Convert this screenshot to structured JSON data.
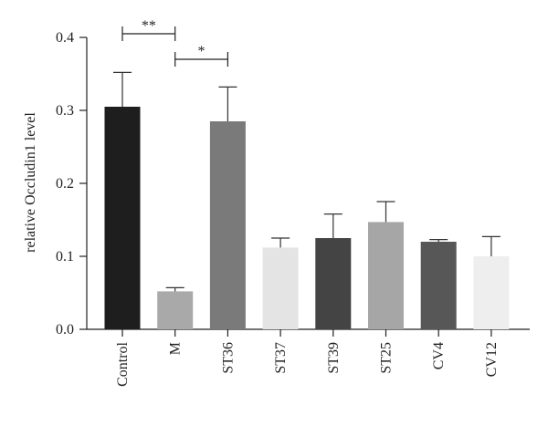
{
  "chart_data": {
    "type": "bar",
    "title": "",
    "xlabel": "",
    "ylabel": "relative Occludin1 level",
    "ylim": [
      0,
      0.4
    ],
    "yticks": [
      "0.0",
      "0.1",
      "0.2",
      "0.3",
      "0.4"
    ],
    "grid": false,
    "categories": [
      "Control",
      "M",
      "ST36",
      "ST37",
      "ST39",
      "ST25",
      "CV4",
      "CV12"
    ],
    "values": [
      0.305,
      0.052,
      0.285,
      0.112,
      0.125,
      0.147,
      0.12,
      0.1
    ],
    "errors": [
      0.047,
      0.005,
      0.047,
      0.013,
      0.033,
      0.028,
      0.003,
      0.027
    ],
    "colors": [
      "#1e1e1e",
      "#a9a9a9",
      "#7a7a7a",
      "#e4e4e4",
      "#444444",
      "#a6a6a6",
      "#575757",
      "#eeeeee"
    ],
    "significance": [
      {
        "from": "Control",
        "to": "M",
        "label": "**",
        "y": 0.405
      },
      {
        "from": "M",
        "to": "ST36",
        "label": "*",
        "y": 0.37
      }
    ]
  }
}
